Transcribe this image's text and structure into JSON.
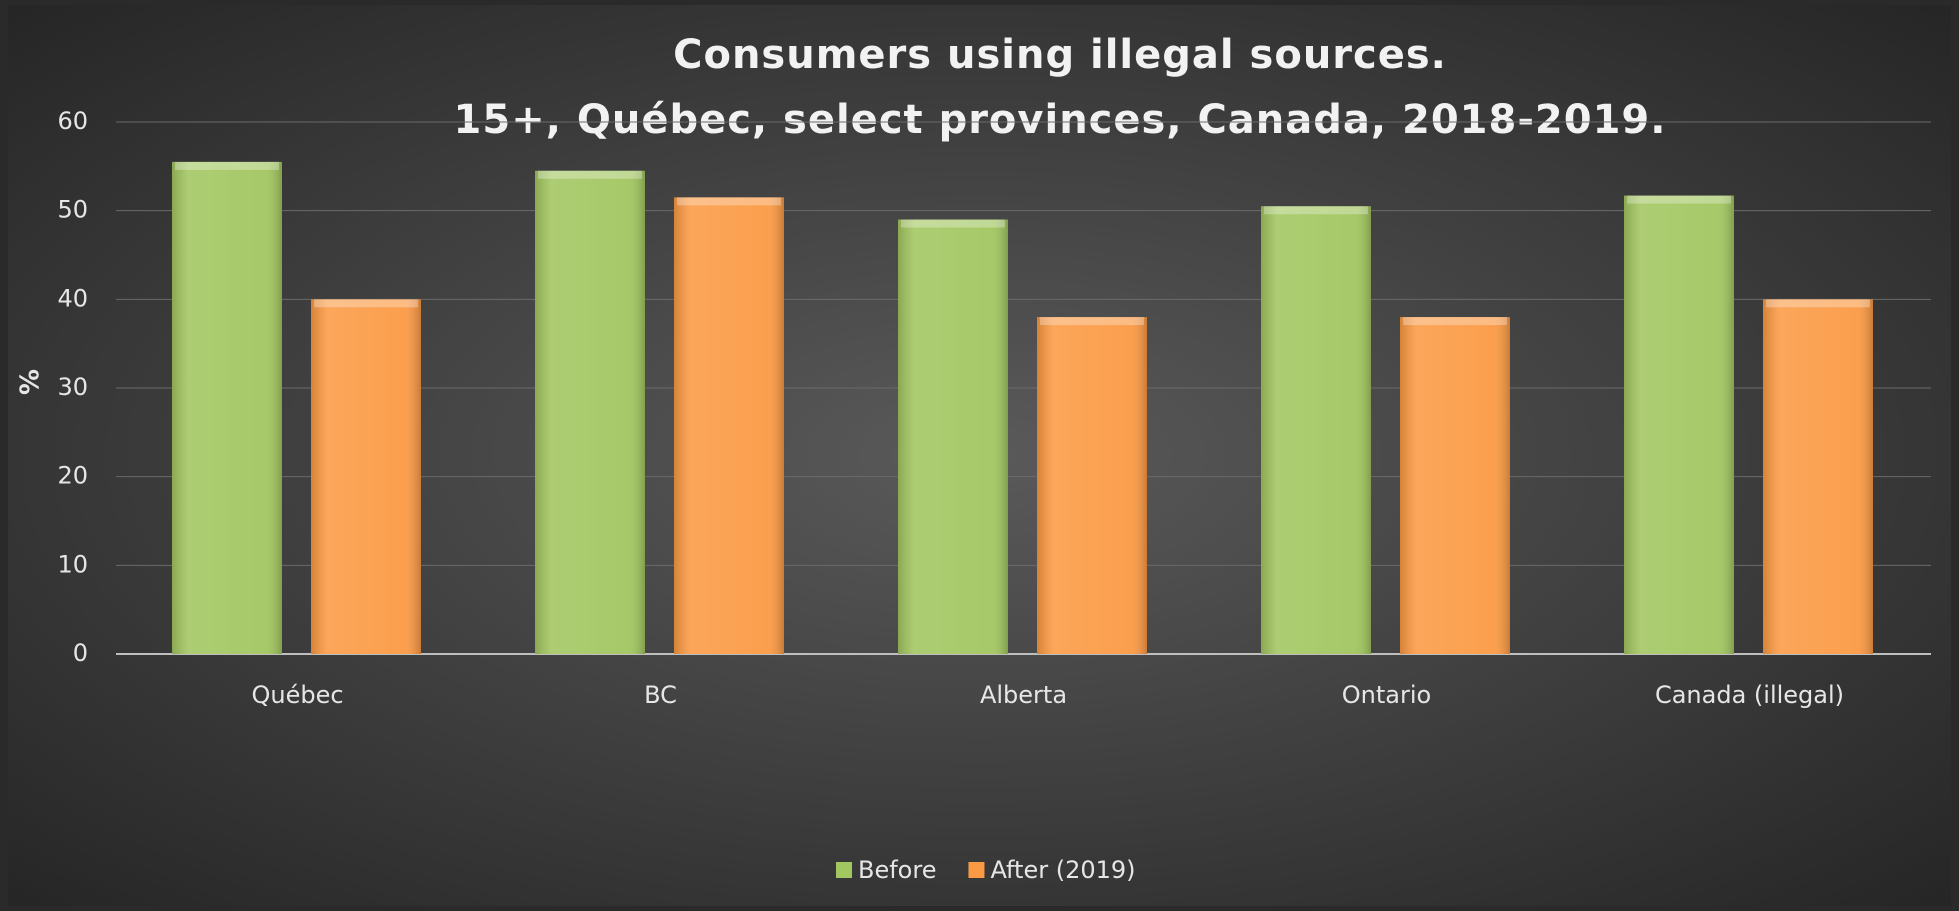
{
  "chart_data": {
    "type": "bar",
    "title": "Consumers using illegal sources.",
    "subtitle": "15+, Québec, select provinces, Canada,  2018-2019.",
    "y_label": "%",
    "categories": [
      "Québec",
      "BC",
      "Alberta",
      "Ontario",
      "Canada (illegal)"
    ],
    "series": [
      {
        "name": "Before",
        "color": "#a2c660",
        "values": [
          55.5,
          54.5,
          49,
          50.5,
          51.7
        ]
      },
      {
        "name": "After (2019)",
        "color": "#fb9a44",
        "values": [
          40,
          51.5,
          38,
          38,
          40
        ]
      }
    ],
    "ylim": [
      0,
      60
    ],
    "yticks": [
      0,
      10,
      20,
      30,
      40,
      50,
      60
    ],
    "grid": true,
    "legend": "bottom"
  }
}
